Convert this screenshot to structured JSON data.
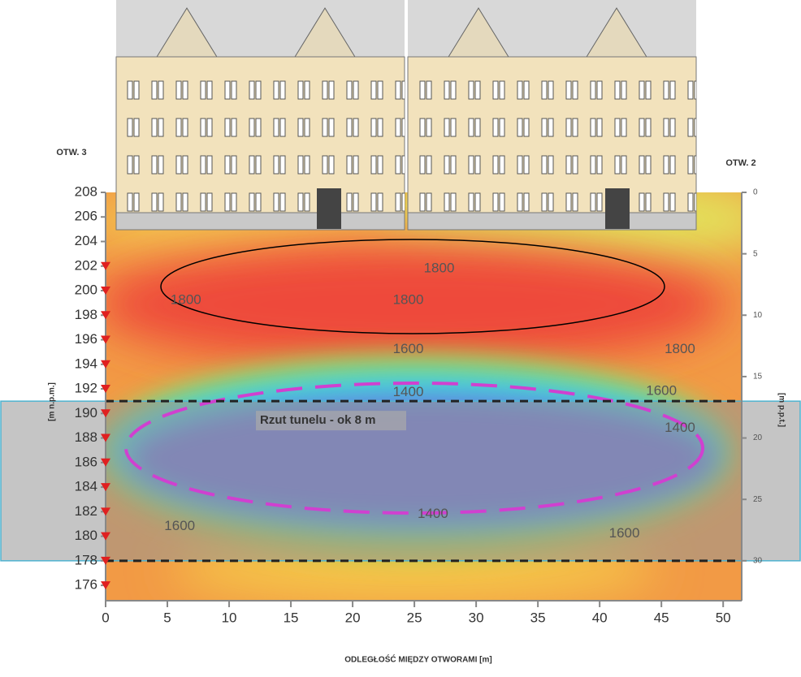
{
  "chart_data": {
    "type": "contour",
    "left_hole_label": "OTW. 3",
    "right_hole_label": "OTW. 2",
    "xlabel": "ODLEGŁOŚĆ MIĘDZY OTWORAMI [m]",
    "ylabel": "[m n.p.m.]",
    "y2label": "[m p.p.t.]",
    "xlim": [
      0,
      51.5
    ],
    "xticks": [
      0,
      5,
      10,
      15,
      20,
      25,
      30,
      35,
      40,
      45,
      50
    ],
    "ylim": [
      174.75,
      208
    ],
    "yticks": [
      176,
      178,
      180,
      182,
      184,
      186,
      188,
      190,
      192,
      194,
      196,
      198,
      200,
      202,
      204,
      206,
      208
    ],
    "y2lim": [
      33.25,
      0
    ],
    "y2ticks": [
      0,
      5,
      10,
      15,
      20,
      25,
      30
    ],
    "sensors": [
      202,
      200,
      198,
      196,
      194,
      192,
      190,
      188,
      186,
      184,
      182,
      180,
      178,
      176
    ],
    "tunnel": {
      "label": "Rzut tunelu  - ok 8 m",
      "top": 191,
      "bottom": 178
    },
    "contour_labels": [
      {
        "value": 1800,
        "x": 27,
        "y": 201.8
      },
      {
        "value": 1800,
        "x": 24.5,
        "y": 199.2
      },
      {
        "value": 1800,
        "x": 6.5,
        "y": 199.2
      },
      {
        "value": 1800,
        "x": 46.5,
        "y": 195.2
      },
      {
        "value": 1600,
        "x": 24.5,
        "y": 195.2
      },
      {
        "value": 1400,
        "x": 24.5,
        "y": 191.7
      },
      {
        "value": 1600,
        "x": 45,
        "y": 191.8
      },
      {
        "value": 1400,
        "x": 46.5,
        "y": 188.8
      },
      {
        "value": 1600,
        "x": 6,
        "y": 180.8
      },
      {
        "value": 1400,
        "x": 26.5,
        "y": 181.8
      },
      {
        "value": 1600,
        "x": 42,
        "y": 180.2
      }
    ]
  }
}
